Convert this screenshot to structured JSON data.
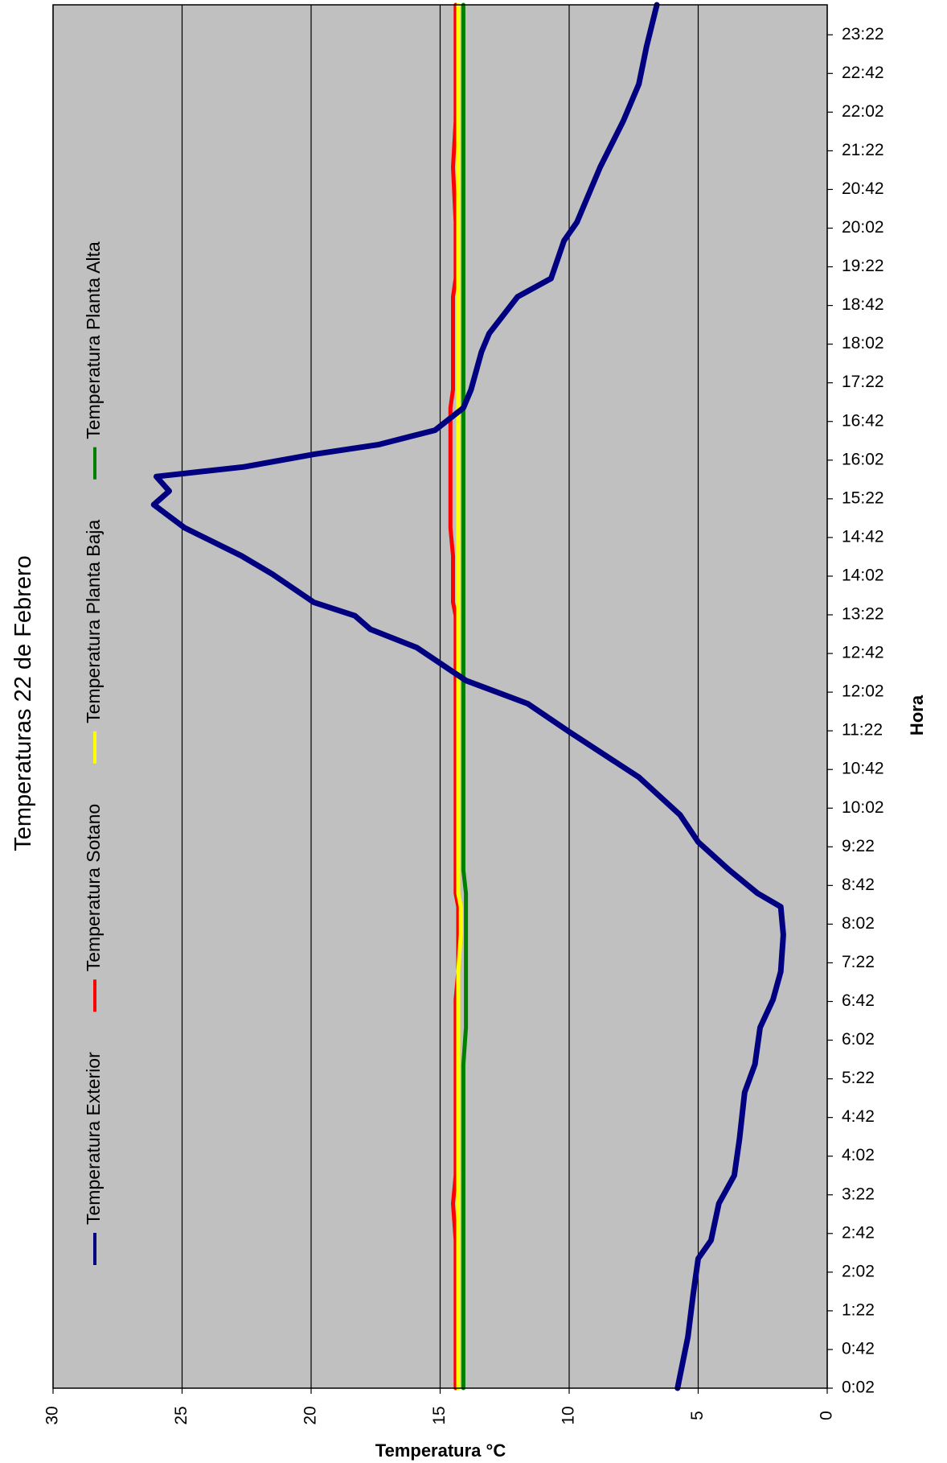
{
  "chart_data": {
    "type": "line",
    "title": "Temperaturas 22 de Febrero",
    "x_label": "Hora",
    "y_label": "Temperatura °C",
    "x": [
      2,
      55,
      98,
      136,
      155,
      193,
      222,
      260,
      308,
      337,
      375,
      404,
      433,
      471,
      500,
      514,
      538,
      567,
      595,
      634,
      681,
      710,
      734,
      768,
      787,
      801,
      815,
      844,
      863,
      892,
      916,
      930,
      945,
      955,
      968,
      978,
      993,
      1016,
      1035,
      1074,
      1093,
      1131,
      1150,
      1189,
      1208,
      1265,
      1313,
      1351,
      1390,
      1433
    ],
    "series": [
      {
        "name": "Temperatura Exterior",
        "color": "#000080",
        "values": [
          5.8,
          5.4,
          5.2,
          5.0,
          4.5,
          4.2,
          3.6,
          3.4,
          3.2,
          2.8,
          2.6,
          2.1,
          1.8,
          1.7,
          1.8,
          2.7,
          3.8,
          5.0,
          5.7,
          7.3,
          10.0,
          11.6,
          14.0,
          15.9,
          17.7,
          18.3,
          19.9,
          21.5,
          22.7,
          24.9,
          26.1,
          25.5,
          26.0,
          22.6,
          19.9,
          17.4,
          15.2,
          14.1,
          13.8,
          13.4,
          13.1,
          12.0,
          10.7,
          10.2,
          9.7,
          8.8,
          7.9,
          7.3,
          7.0,
          6.6
        ]
      },
      {
        "name": "Temperatura Sotano",
        "color": "#ff0000",
        "values": [
          14.4,
          14.4,
          14.4,
          14.4,
          14.4,
          14.5,
          14.4,
          14.4,
          14.4,
          14.4,
          14.4,
          14.4,
          14.3,
          14.3,
          14.3,
          14.4,
          14.4,
          14.4,
          14.4,
          14.4,
          14.4,
          14.4,
          14.4,
          14.4,
          14.4,
          14.4,
          14.5,
          14.5,
          14.5,
          14.6,
          14.6,
          14.6,
          14.6,
          14.6,
          14.6,
          14.6,
          14.6,
          14.6,
          14.5,
          14.5,
          14.5,
          14.5,
          14.4,
          14.4,
          14.4,
          14.5,
          14.4,
          14.4,
          14.4,
          14.4
        ]
      },
      {
        "name": "Temperatura Planta Baja",
        "color": "#ffff00",
        "values": [
          14.3,
          14.3,
          14.3,
          14.3,
          14.3,
          14.3,
          14.3,
          14.3,
          14.3,
          14.3,
          14.3,
          14.3,
          14.3,
          14.2,
          14.2,
          14.3,
          14.3,
          14.3,
          14.3,
          14.3,
          14.3,
          14.3,
          14.3,
          14.3,
          14.3,
          14.3,
          14.3,
          14.3,
          14.3,
          14.3,
          14.3,
          14.3,
          14.3,
          14.3,
          14.3,
          14.3,
          14.3,
          14.3,
          14.3,
          14.3,
          14.3,
          14.3,
          14.3,
          14.3,
          14.3,
          14.3,
          14.3,
          14.3,
          14.3,
          14.3
        ]
      },
      {
        "name": "Temperatura Planta Alta",
        "color": "#008000",
        "values": [
          14.1,
          14.1,
          14.1,
          14.1,
          14.1,
          14.1,
          14.1,
          14.1,
          14.1,
          14.1,
          14.0,
          14.0,
          14.0,
          14.0,
          14.0,
          14.0,
          14.1,
          14.1,
          14.1,
          14.1,
          14.1,
          14.1,
          14.1,
          14.1,
          14.1,
          14.1,
          14.1,
          14.1,
          14.1,
          14.1,
          14.1,
          14.1,
          14.1,
          14.1,
          14.1,
          14.1,
          14.1,
          14.1,
          14.1,
          14.1,
          14.1,
          14.1,
          14.1,
          14.1,
          14.1,
          14.1,
          14.1,
          14.1,
          14.1,
          14.1
        ]
      }
    ],
    "xlim": [
      2,
      1433
    ],
    "xticks": [
      {
        "value": 2,
        "label": "0:02"
      },
      {
        "value": 42,
        "label": "0:42"
      },
      {
        "value": 82,
        "label": "1:22"
      },
      {
        "value": 122,
        "label": "2:02"
      },
      {
        "value": 162,
        "label": "2:42"
      },
      {
        "value": 202,
        "label": "3:22"
      },
      {
        "value": 242,
        "label": "4:02"
      },
      {
        "value": 282,
        "label": "4:42"
      },
      {
        "value": 322,
        "label": "5:22"
      },
      {
        "value": 362,
        "label": "6:02"
      },
      {
        "value": 402,
        "label": "6:42"
      },
      {
        "value": 442,
        "label": "7:22"
      },
      {
        "value": 482,
        "label": "8:02"
      },
      {
        "value": 522,
        "label": "8:42"
      },
      {
        "value": 562,
        "label": "9:22"
      },
      {
        "value": 602,
        "label": "10:02"
      },
      {
        "value": 642,
        "label": "10:42"
      },
      {
        "value": 682,
        "label": "11:22"
      },
      {
        "value": 722,
        "label": "12:02"
      },
      {
        "value": 762,
        "label": "12:42"
      },
      {
        "value": 802,
        "label": "13:22"
      },
      {
        "value": 842,
        "label": "14:02"
      },
      {
        "value": 882,
        "label": "14:42"
      },
      {
        "value": 922,
        "label": "15:22"
      },
      {
        "value": 962,
        "label": "16:02"
      },
      {
        "value": 1002,
        "label": "16:42"
      },
      {
        "value": 1042,
        "label": "17:22"
      },
      {
        "value": 1082,
        "label": "18:02"
      },
      {
        "value": 1122,
        "label": "18:42"
      },
      {
        "value": 1162,
        "label": "19:22"
      },
      {
        "value": 1202,
        "label": "20:02"
      },
      {
        "value": 1242,
        "label": "20:42"
      },
      {
        "value": 1282,
        "label": "21:22"
      },
      {
        "value": 1322,
        "label": "22:02"
      },
      {
        "value": 1362,
        "label": "22:42"
      },
      {
        "value": 1402,
        "label": "23:22"
      }
    ],
    "ylim": [
      0,
      30
    ],
    "yticks": [
      0,
      5,
      10,
      15,
      20,
      25,
      30
    ],
    "grid": true
  }
}
